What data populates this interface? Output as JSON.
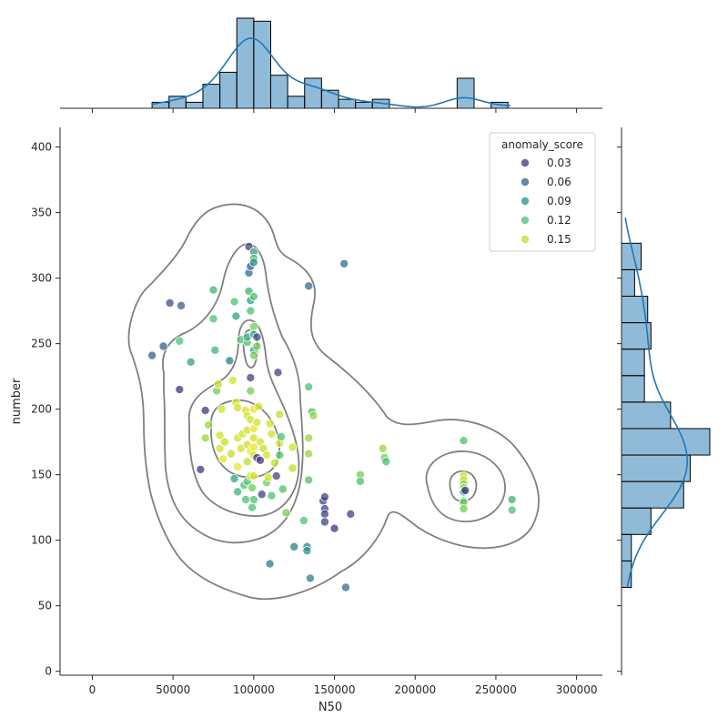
{
  "chart_data": {
    "type": "scatter",
    "xlabel": "N50",
    "ylabel": "number",
    "xlim": [
      -20000,
      316000
    ],
    "ylim": [
      -3,
      415
    ],
    "x_ticks": [
      0,
      50000,
      100000,
      150000,
      200000,
      250000,
      300000
    ],
    "x_tick_labels": [
      "0",
      "50000",
      "100000",
      "150000",
      "200000",
      "250000",
      "300000"
    ],
    "y_ticks": [
      0,
      50,
      100,
      150,
      200,
      250,
      300,
      350,
      400
    ],
    "y_tick_labels": [
      "0",
      "50",
      "100",
      "150",
      "200",
      "250",
      "300",
      "350",
      "400"
    ],
    "legend": {
      "title": "anomaly_score",
      "placement": "top-right",
      "entries": [
        {
          "label": "0.03",
          "color": "#46327e"
        },
        {
          "label": "0.06",
          "color": "#365c8d"
        },
        {
          "label": "0.09",
          "color": "#21918c"
        },
        {
          "label": "0.12",
          "color": "#4ac16d"
        },
        {
          "label": "0.15",
          "color": "#bddf26"
        }
      ]
    },
    "points": [
      [
        37000,
        241,
        0.06
      ],
      [
        44000,
        248,
        0.06
      ],
      [
        48000,
        281,
        0.05
      ],
      [
        55000,
        279,
        0.06
      ],
      [
        54000,
        215,
        0.03
      ],
      [
        54000,
        252,
        0.12
      ],
      [
        61000,
        236,
        0.1
      ],
      [
        67000,
        154,
        0.03
      ],
      [
        70000,
        199,
        0.03
      ],
      [
        70000,
        178,
        0.14
      ],
      [
        72000,
        188,
        0.14
      ],
      [
        75000,
        291,
        0.11
      ],
      [
        75000,
        269,
        0.12
      ],
      [
        76000,
        245,
        0.11
      ],
      [
        77000,
        214,
        0.13
      ],
      [
        78000,
        219,
        0.15
      ],
      [
        79000,
        180,
        0.16
      ],
      [
        79000,
        170,
        0.16
      ],
      [
        80000,
        200,
        0.16
      ],
      [
        81000,
        162,
        0.17
      ],
      [
        82000,
        175,
        0.15
      ],
      [
        85000,
        237,
        0.08
      ],
      [
        86000,
        166,
        0.15
      ],
      [
        87000,
        222,
        0.16
      ],
      [
        88000,
        282,
        0.12
      ],
      [
        88000,
        147,
        0.1
      ],
      [
        89000,
        271,
        0.1
      ],
      [
        89000,
        205,
        0.16
      ],
      [
        90000,
        201,
        0.16
      ],
      [
        90000,
        178,
        0.16
      ],
      [
        90000,
        156,
        0.17
      ],
      [
        90000,
        137,
        0.11
      ],
      [
        92000,
        253,
        0.12
      ],
      [
        92000,
        170,
        0.16
      ],
      [
        93000,
        181,
        0.16
      ],
      [
        94000,
        142,
        0.12
      ],
      [
        95000,
        199,
        0.16
      ],
      [
        95000,
        131,
        0.12
      ],
      [
        96000,
        251,
        0.12
      ],
      [
        96000,
        255,
        0.1
      ],
      [
        96000,
        195,
        0.16
      ],
      [
        96000,
        184,
        0.16
      ],
      [
        96000,
        173,
        0.16
      ],
      [
        96000,
        160,
        0.15
      ],
      [
        96000,
        145,
        0.12
      ],
      [
        97000,
        290,
        0.11
      ],
      [
        97000,
        304,
        0.07
      ],
      [
        97000,
        324,
        0.04
      ],
      [
        98000,
        309,
        0.06
      ],
      [
        98000,
        283,
        0.1
      ],
      [
        98000,
        275,
        0.12
      ],
      [
        98000,
        224,
        0.04
      ],
      [
        98000,
        214,
        0.13
      ],
      [
        98000,
        192,
        0.16
      ],
      [
        98000,
        168,
        0.17
      ],
      [
        98000,
        149,
        0.16
      ],
      [
        99000,
        140,
        0.13
      ],
      [
        99000,
        125,
        0.12
      ],
      [
        100000,
        320,
        0.1
      ],
      [
        100000,
        315,
        0.11
      ],
      [
        100000,
        312,
        0.09
      ],
      [
        100000,
        286,
        0.12
      ],
      [
        100000,
        263,
        0.13
      ],
      [
        100000,
        257,
        0.1
      ],
      [
        100000,
        245,
        0.1
      ],
      [
        100000,
        241,
        0.13
      ],
      [
        100000,
        200,
        0.17
      ],
      [
        100000,
        185,
        0.17
      ],
      [
        100000,
        178,
        0.16
      ],
      [
        100000,
        171,
        0.17
      ],
      [
        100000,
        165,
        0.16
      ],
      [
        100000,
        149,
        0.16
      ],
      [
        100000,
        131,
        0.12
      ],
      [
        102000,
        255,
        0.05
      ],
      [
        102000,
        248,
        0.13
      ],
      [
        102000,
        190,
        0.16
      ],
      [
        102000,
        163,
        0.03
      ],
      [
        103000,
        202,
        0.16
      ],
      [
        104000,
        175,
        0.16
      ],
      [
        104000,
        161,
        0.03
      ],
      [
        105000,
        135,
        0.04
      ],
      [
        106000,
        170,
        0.15
      ],
      [
        108000,
        144,
        0.13
      ],
      [
        108000,
        165,
        0.16
      ],
      [
        109000,
        148,
        0.16
      ],
      [
        110000,
        82,
        0.08
      ],
      [
        110000,
        189,
        0.16
      ],
      [
        111000,
        181,
        0.16
      ],
      [
        111000,
        134,
        0.12
      ],
      [
        113000,
        159,
        0.15
      ],
      [
        114000,
        149,
        0.04
      ],
      [
        115000,
        228,
        0.04
      ],
      [
        116000,
        174,
        0.16
      ],
      [
        116000,
        165,
        0.12
      ],
      [
        116000,
        196,
        0.15
      ],
      [
        117000,
        179,
        0.12
      ],
      [
        118000,
        139,
        0.12
      ],
      [
        120000,
        121,
        0.13
      ],
      [
        124000,
        171,
        0.16
      ],
      [
        124000,
        155,
        0.15
      ],
      [
        125000,
        95,
        0.08
      ],
      [
        131000,
        115,
        0.12
      ],
      [
        133000,
        95,
        0.08
      ],
      [
        133000,
        92,
        0.09
      ],
      [
        134000,
        294,
        0.07
      ],
      [
        134000,
        217,
        0.12
      ],
      [
        134000,
        178,
        0.14
      ],
      [
        134000,
        166,
        0.14
      ],
      [
        134000,
        146,
        0.12
      ],
      [
        135000,
        71,
        0.08
      ],
      [
        136000,
        198,
        0.12
      ],
      [
        137000,
        195,
        0.14
      ],
      [
        143000,
        130,
        0.04
      ],
      [
        144000,
        133,
        0.04
      ],
      [
        144000,
        124,
        0.04
      ],
      [
        144000,
        120,
        0.04
      ],
      [
        144000,
        114,
        0.04
      ],
      [
        150000,
        109,
        0.03
      ],
      [
        156000,
        311,
        0.07
      ],
      [
        157000,
        64,
        0.07
      ],
      [
        160000,
        120,
        0.04
      ],
      [
        166000,
        150,
        0.13
      ],
      [
        166000,
        145,
        0.12
      ],
      [
        180000,
        170,
        0.14
      ],
      [
        181000,
        163,
        0.13
      ],
      [
        182000,
        160,
        0.12
      ],
      [
        230000,
        176,
        0.12
      ],
      [
        230000,
        149,
        0.15
      ],
      [
        230000,
        146,
        0.15
      ],
      [
        230000,
        143,
        0.14
      ],
      [
        230000,
        140,
        0.14
      ],
      [
        230000,
        137,
        0.1
      ],
      [
        230000,
        130,
        0.12
      ],
      [
        230000,
        129,
        0.13
      ],
      [
        230000,
        124,
        0.13
      ],
      [
        231000,
        138,
        0.03
      ],
      [
        260000,
        131,
        0.11
      ],
      [
        260000,
        123,
        0.12
      ]
    ]
  }
}
